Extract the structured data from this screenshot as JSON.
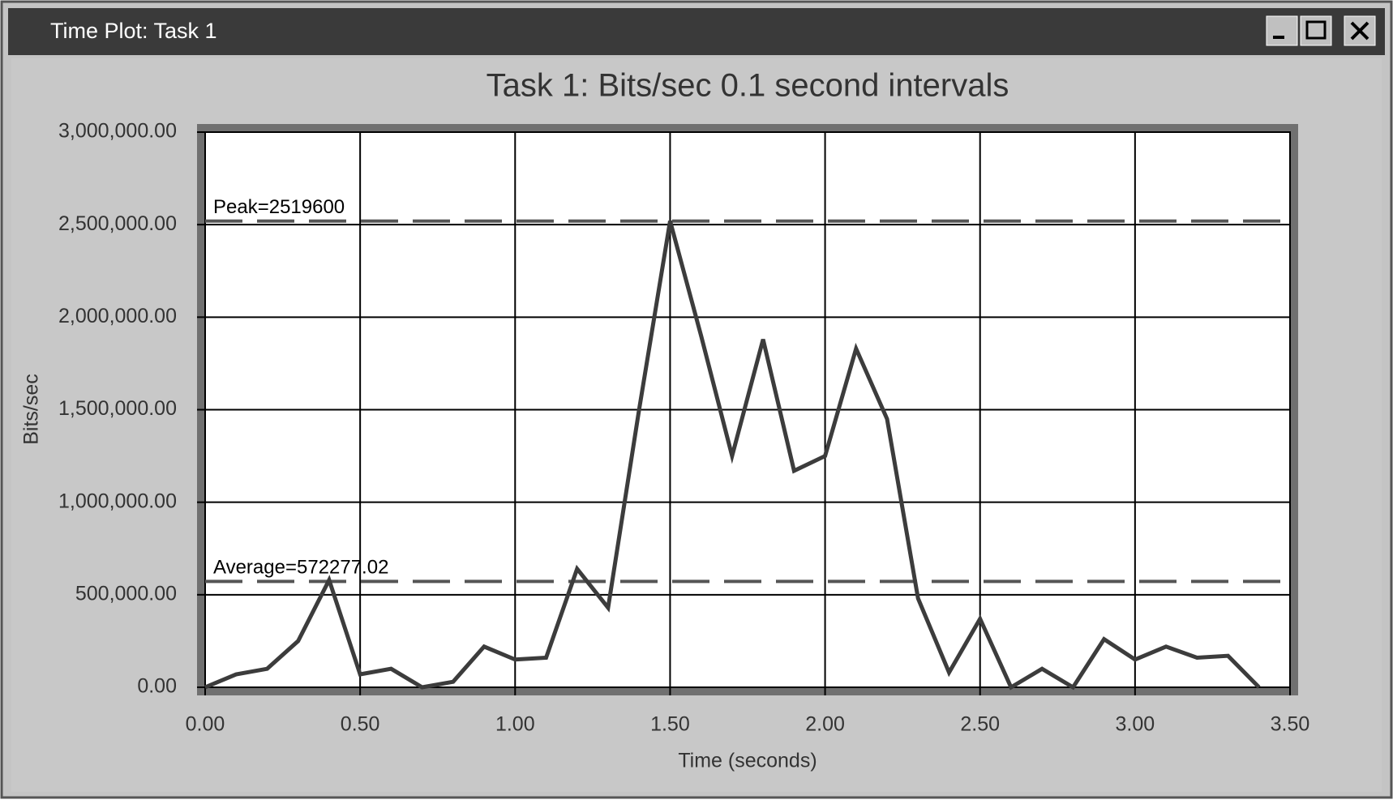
{
  "window": {
    "title": "Time Plot: Task 1"
  },
  "chart_data": {
    "type": "line",
    "title": "Task 1: Bits/sec 0.1 second intervals",
    "x_label": "Time (seconds)",
    "y_label": "Bits/sec",
    "x": [
      0,
      0.1,
      0.2,
      0.3,
      0.4,
      0.5,
      0.6,
      0.7,
      0.8,
      0.9,
      1.0,
      1.1,
      1.2,
      1.3,
      1.4,
      1.5,
      1.6,
      1.7,
      1.8,
      1.9,
      2.0,
      2.1,
      2.2,
      2.3,
      2.4,
      2.5,
      2.6,
      2.7,
      2.8,
      2.9,
      3.0,
      3.1,
      3.2,
      3.3,
      3.4
    ],
    "values": [
      0,
      70000,
      100000,
      250000,
      580000,
      70000,
      100000,
      0,
      30000,
      220000,
      150000,
      160000,
      640000,
      430000,
      1500000,
      2519600,
      1900000,
      1250000,
      1880000,
      1170000,
      1250000,
      1830000,
      1450000,
      480000,
      80000,
      370000,
      0,
      100000,
      0,
      260000,
      150000,
      220000,
      160000,
      170000,
      0
    ],
    "color": "#3c3c3c",
    "xlim": [
      0,
      3.5
    ],
    "xticks": [
      {
        "value": 0,
        "label": "0.00"
      },
      {
        "value": 0.5,
        "label": "0.50"
      },
      {
        "value": 1,
        "label": "1.00"
      },
      {
        "value": 1.5,
        "label": "1.50"
      },
      {
        "value": 2,
        "label": "2.00"
      },
      {
        "value": 2.5,
        "label": "2.50"
      },
      {
        "value": 3,
        "label": "3.00"
      },
      {
        "value": 3.5,
        "label": "3.50"
      }
    ],
    "ylim": [
      0,
      3000000
    ],
    "yticks": [
      {
        "value": 0,
        "label": "0.00"
      },
      {
        "value": 500000,
        "label": "500,000.00"
      },
      {
        "value": 1000000,
        "label": "1,000,000.00"
      },
      {
        "value": 1500000,
        "label": "1,500,000.00"
      },
      {
        "value": 2000000,
        "label": "2,000,000.00"
      },
      {
        "value": 2500000,
        "label": "2,500,000.00"
      },
      {
        "value": 3000000,
        "label": "3,000,000.00"
      }
    ],
    "grid": true,
    "reference_lines": [
      {
        "label": "Peak=2519600",
        "value": 2519600
      },
      {
        "label": "Average=572277.02",
        "value": 572277.02
      }
    ]
  }
}
